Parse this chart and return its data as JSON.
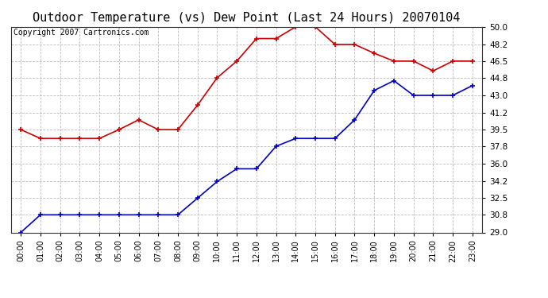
{
  "title": "Outdoor Temperature (vs) Dew Point (Last 24 Hours) 20070104",
  "copyright": "Copyright 2007 Cartronics.com",
  "hours": [
    "00:00",
    "01:00",
    "02:00",
    "03:00",
    "04:00",
    "05:00",
    "06:00",
    "07:00",
    "08:00",
    "09:00",
    "10:00",
    "11:00",
    "12:00",
    "13:00",
    "14:00",
    "15:00",
    "16:00",
    "17:00",
    "18:00",
    "19:00",
    "20:00",
    "21:00",
    "22:00",
    "23:00"
  ],
  "temp": [
    39.5,
    38.6,
    38.6,
    38.6,
    38.6,
    39.5,
    40.5,
    39.5,
    39.5,
    42.0,
    44.8,
    46.5,
    48.8,
    48.8,
    50.0,
    50.0,
    48.2,
    48.2,
    47.3,
    46.5,
    46.5,
    45.5,
    46.5,
    46.5
  ],
  "dew": [
    29.0,
    30.8,
    30.8,
    30.8,
    30.8,
    30.8,
    30.8,
    30.8,
    30.8,
    32.5,
    34.2,
    35.5,
    35.5,
    37.8,
    38.6,
    38.6,
    38.6,
    40.5,
    43.5,
    44.5,
    43.0,
    43.0,
    43.0,
    44.0
  ],
  "temp_color": "#cc0000",
  "dew_color": "#0000cc",
  "plot_bg": "#ffffff",
  "grid_color": "#bbbbbb",
  "ylim_min": 29.0,
  "ylim_max": 50.0,
  "yticks": [
    29.0,
    30.8,
    32.5,
    34.2,
    36.0,
    37.8,
    39.5,
    41.2,
    43.0,
    44.8,
    46.5,
    48.2,
    50.0
  ],
  "title_fontsize": 11,
  "copyright_fontsize": 7
}
